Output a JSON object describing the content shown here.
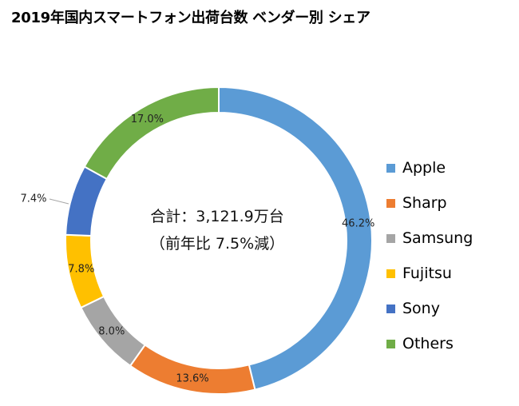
{
  "chart_data": {
    "type": "pie",
    "title": "2019年国内スマートフォン出荷台数 ベンダー別 シェア",
    "center_lines": [
      "合計：3,121.9万台",
      "（前年比 7.5%減）"
    ],
    "slices": [
      {
        "name": "Apple",
        "value": 46.2,
        "label": "46.2%",
        "color": "#5b9bd5"
      },
      {
        "name": "Sharp",
        "value": 13.6,
        "label": "13.6%",
        "color": "#ed7d31"
      },
      {
        "name": "Samsung",
        "value": 8.0,
        "label": "8.0%",
        "color": "#a5a5a5"
      },
      {
        "name": "Fujitsu",
        "value": 7.8,
        "label": "7.8%",
        "color": "#ffc000"
      },
      {
        "name": "Sony",
        "value": 7.4,
        "label": "7.4%",
        "color": "#4472c4"
      },
      {
        "name": "Others",
        "value": 17.0,
        "label": "17.0%",
        "color": "#70ad47"
      }
    ],
    "legend_position": "right"
  }
}
